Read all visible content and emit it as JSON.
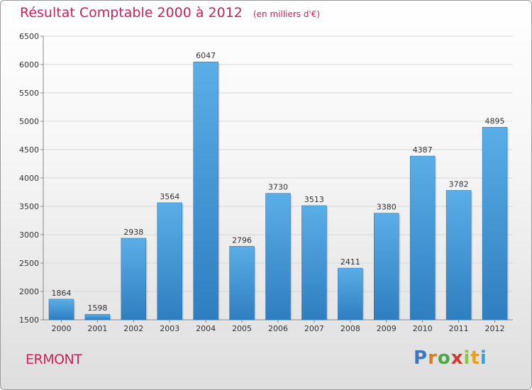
{
  "chart_data": {
    "type": "bar",
    "title": "Résultat Comptable 2000 à 2012",
    "subtitle": "(en milliers d'€)",
    "categories": [
      "2000",
      "2001",
      "2002",
      "2003",
      "2004",
      "2005",
      "2006",
      "2007",
      "2008",
      "2009",
      "2010",
      "2011",
      "2012"
    ],
    "values": [
      1864,
      1598,
      2938,
      3564,
      6047,
      2796,
      3730,
      3513,
      2411,
      3380,
      4387,
      3782,
      4895
    ],
    "ylim": [
      1500,
      6500
    ],
    "yticks": [
      1500,
      2000,
      2500,
      3000,
      3500,
      4000,
      4500,
      5000,
      5500,
      6000,
      6500
    ],
    "grid": true,
    "bar_color": "#4d9fdc",
    "bar_color_light": "#5aaee6",
    "bar_color_dark": "#2f7ec0"
  },
  "footer": {
    "city": "ERMONT",
    "logo_letters": [
      "P",
      "r",
      "o",
      "x",
      "i",
      "t",
      "i"
    ],
    "logo_colors": [
      "#3a78c2",
      "#e07b1e",
      "#4aa84a",
      "#d33b2e",
      "#8cc63e",
      "#e5a11c",
      "#3aa0d8"
    ]
  }
}
